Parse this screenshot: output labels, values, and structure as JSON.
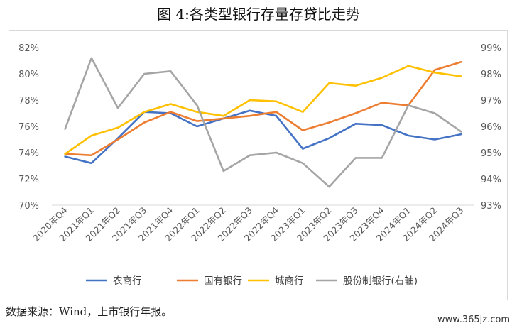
{
  "title": "图 4:各类型银行存量存贷比走势",
  "source": "数据来源：Wind，上市银行年报。",
  "watermark": "www.365jz.com",
  "chart_data": {
    "type": "line",
    "title": "",
    "categories": [
      "2020年Q4",
      "2021年Q1",
      "2021年Q2",
      "2021年Q3",
      "2021年Q4",
      "2022年Q1",
      "2022年Q2",
      "2022年Q3",
      "2022年Q4",
      "2023年Q1",
      "2023年Q2",
      "2023年Q3",
      "2023年Q4",
      "2024年Q1",
      "2024年Q2",
      "2024年Q3"
    ],
    "y_left": {
      "min": 70,
      "max": 82,
      "ticks": [
        70,
        72,
        74,
        76,
        78,
        80,
        82
      ],
      "suffix": "%"
    },
    "y_right": {
      "min": 93,
      "max": 99,
      "ticks": [
        93,
        94,
        95,
        96,
        97,
        98,
        99
      ],
      "suffix": "%"
    },
    "legend_position": "bottom",
    "grid": false,
    "series": [
      {
        "name": "农商行",
        "axis": "left",
        "color": "#4472C4",
        "values": [
          73.7,
          73.2,
          75.1,
          77.1,
          77.0,
          76.0,
          76.6,
          77.2,
          76.8,
          74.3,
          75.1,
          76.2,
          76.1,
          75.3,
          75.0,
          75.4
        ]
      },
      {
        "name": "国有银行",
        "axis": "left",
        "color": "#ED7D31",
        "values": [
          73.9,
          73.8,
          75.0,
          76.3,
          77.1,
          76.4,
          76.6,
          76.8,
          77.1,
          75.7,
          76.3,
          77.0,
          77.8,
          77.6,
          80.3,
          80.9
        ]
      },
      {
        "name": "城商行",
        "axis": "left",
        "color": "#FFC000",
        "values": [
          73.9,
          75.3,
          75.9,
          77.1,
          77.7,
          77.1,
          76.8,
          78.0,
          77.9,
          77.1,
          79.3,
          79.1,
          79.7,
          80.6,
          80.1,
          79.8
        ]
      },
      {
        "name": "股份制银行(右轴)",
        "axis": "right",
        "color": "#A5A5A5",
        "values": [
          95.9,
          98.6,
          96.7,
          98.0,
          98.1,
          96.8,
          94.3,
          94.9,
          95.0,
          94.6,
          93.7,
          94.8,
          94.8,
          96.8,
          96.5,
          95.8
        ]
      }
    ]
  }
}
